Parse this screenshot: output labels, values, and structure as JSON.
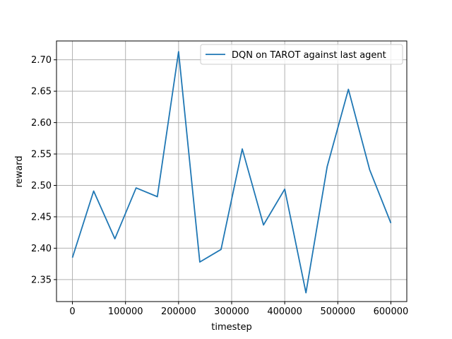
{
  "chart_data": {
    "type": "line",
    "title": "",
    "xlabel": "timestep",
    "ylabel": "reward",
    "xlim": [
      -30000,
      630000
    ],
    "ylim": [
      2.315,
      2.73
    ],
    "xticks": [
      0,
      100000,
      200000,
      300000,
      400000,
      500000,
      600000
    ],
    "yticks": [
      2.35,
      2.4,
      2.45,
      2.5,
      2.55,
      2.6,
      2.65,
      2.7
    ],
    "x_tick_labels": [
      "0",
      "100000",
      "200000",
      "300000",
      "400000",
      "500000",
      "600000"
    ],
    "y_tick_labels": [
      "2.35",
      "2.40",
      "2.45",
      "2.50",
      "2.55",
      "2.60",
      "2.65",
      "2.70"
    ],
    "grid": true,
    "legend_position": "top-right",
    "series": [
      {
        "name": "DQN on TAROT against last agent",
        "color": "#1f77b4",
        "x": [
          0,
          40000,
          80000,
          120000,
          160000,
          200000,
          240000,
          280000,
          320000,
          360000,
          400000,
          440000,
          480000,
          520000,
          560000,
          600000
        ],
        "y": [
          2.385,
          2.491,
          2.415,
          2.496,
          2.482,
          2.713,
          2.378,
          2.398,
          2.558,
          2.437,
          2.494,
          2.329,
          2.53,
          2.653,
          2.525,
          2.44
        ]
      }
    ]
  }
}
